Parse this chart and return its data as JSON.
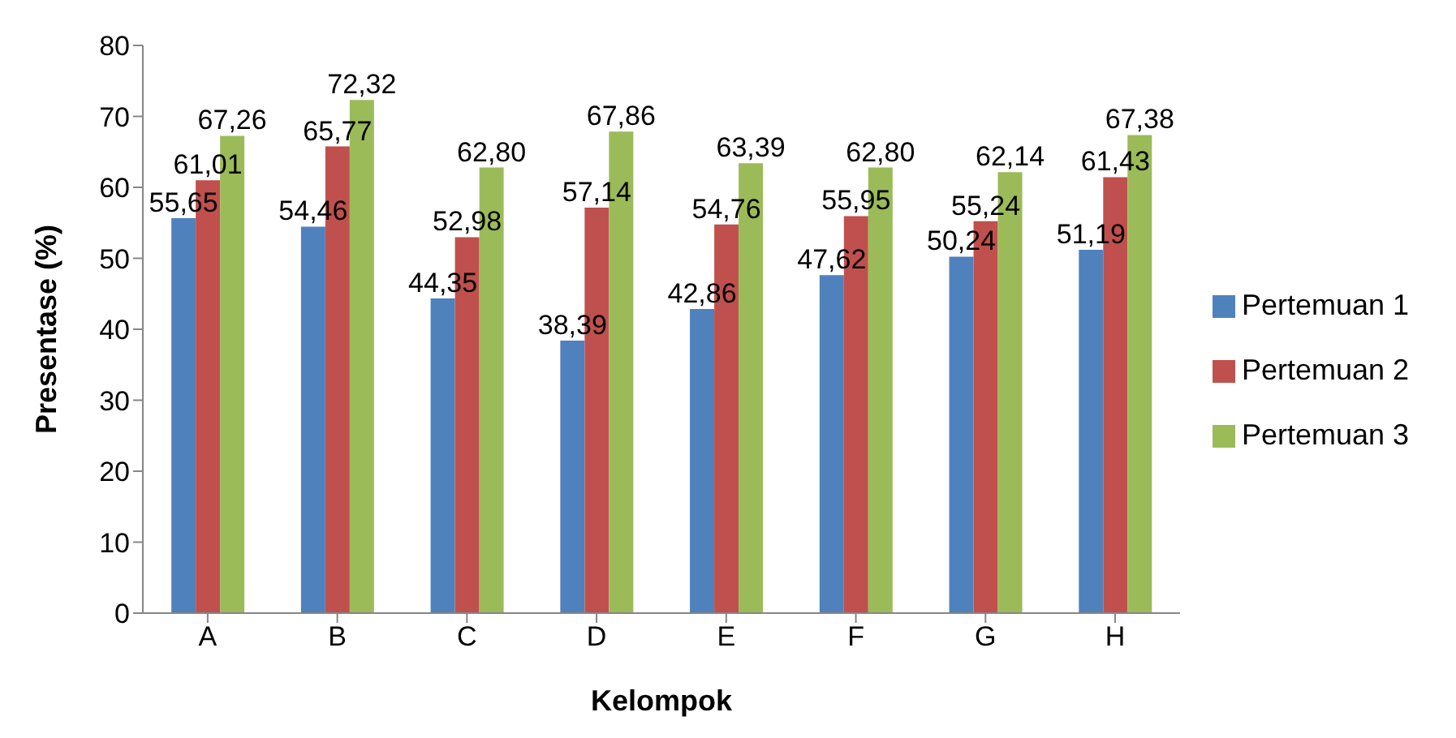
{
  "chart_data": {
    "type": "bar",
    "xlabel": "Kelompok",
    "ylabel": "Presentase (%)",
    "categories": [
      "A",
      "B",
      "C",
      "D",
      "E",
      "F",
      "G",
      "H"
    ],
    "series": [
      {
        "name": "Pertemuan 1",
        "color": "#4f81bd",
        "values": [
          55.65,
          54.46,
          44.35,
          38.39,
          42.86,
          47.62,
          50.24,
          51.19
        ],
        "value_labels": [
          "55,65",
          "54,46",
          "44,35",
          "38,39",
          "42,86",
          "47,62",
          "50,24",
          "51,19"
        ]
      },
      {
        "name": "Pertemuan 2",
        "color": "#c0504d",
        "values": [
          61.01,
          65.77,
          52.98,
          57.14,
          54.76,
          55.95,
          55.24,
          61.43
        ],
        "value_labels": [
          "61,01",
          "65,77",
          "52,98",
          "57,14",
          "54,76",
          "55,95",
          "55,24",
          "61,43"
        ]
      },
      {
        "name": "Pertemuan 3",
        "color": "#9bbb59",
        "values": [
          67.26,
          72.32,
          62.8,
          67.86,
          63.39,
          62.8,
          62.14,
          67.38
        ],
        "value_labels": [
          "67,26",
          "72,32",
          "62,80",
          "67,86",
          "63,39",
          "62,80",
          "62,14",
          "67,38"
        ]
      }
    ],
    "ylim": [
      0,
      80
    ],
    "yticks": [
      0,
      10,
      20,
      30,
      40,
      50,
      60,
      70,
      80
    ],
    "grid": false,
    "legend": "right"
  }
}
